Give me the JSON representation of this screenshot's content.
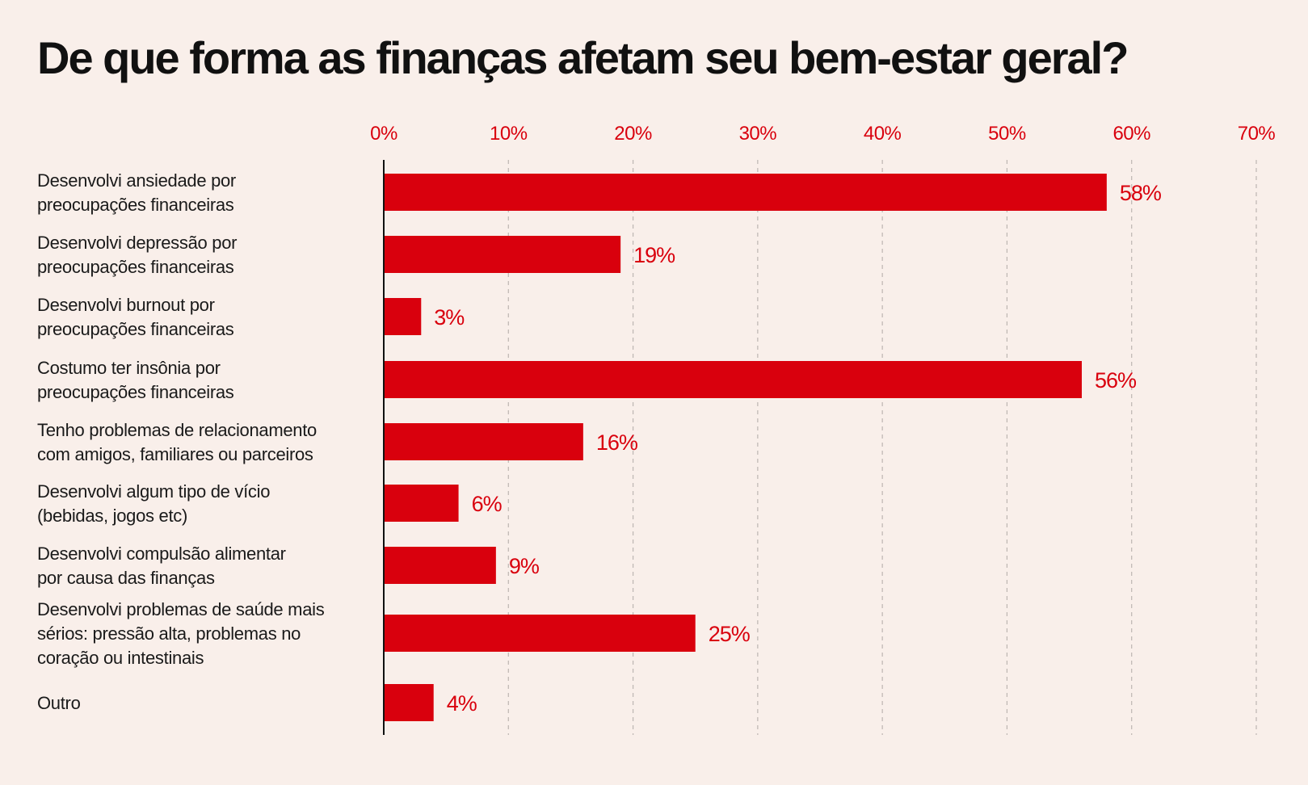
{
  "chart_data": {
    "type": "bar",
    "orientation": "horizontal",
    "title": "De que forma as finanças afetam seu bem-estar geral?",
    "categories": [
      [
        "Desenvolvi ansiedade por",
        "preocupações financeiras"
      ],
      [
        "Desenvolvi depressão por",
        "preocupações financeiras"
      ],
      [
        "Desenvolvi burnout por",
        "preocupações financeiras"
      ],
      [
        "Costumo ter insônia por",
        "preocupações financeiras"
      ],
      [
        "Tenho problemas de relacionamento",
        "com amigos, familiares ou parceiros"
      ],
      [
        "Desenvolvi algum tipo de vício",
        "(bebidas, jogos etc)"
      ],
      [
        "Desenvolvi compulsão alimentar",
        "por causa das finanças"
      ],
      [
        "Desenvolvi problemas de saúde mais",
        "sérios: pressão alta, problemas no",
        "coração ou intestinais"
      ],
      [
        "Outro"
      ]
    ],
    "values": [
      58,
      19,
      3,
      56,
      16,
      6,
      9,
      25,
      4
    ],
    "value_labels": [
      "58%",
      "19%",
      "3%",
      "56%",
      "16%",
      "6%",
      "9%",
      "25%",
      "4%"
    ],
    "xticks": [
      "0%",
      "10%",
      "20%",
      "30%",
      "40%",
      "50%",
      "60%",
      "70%"
    ],
    "xlim": [
      0,
      70
    ],
    "grid": "vertical dashed",
    "axis_position": "top",
    "colors": {
      "bar": "#d9000d",
      "tick_text": "#d9000d",
      "background": "#f9efea",
      "grid": "#bdb6b2",
      "axis": "#111111"
    }
  }
}
